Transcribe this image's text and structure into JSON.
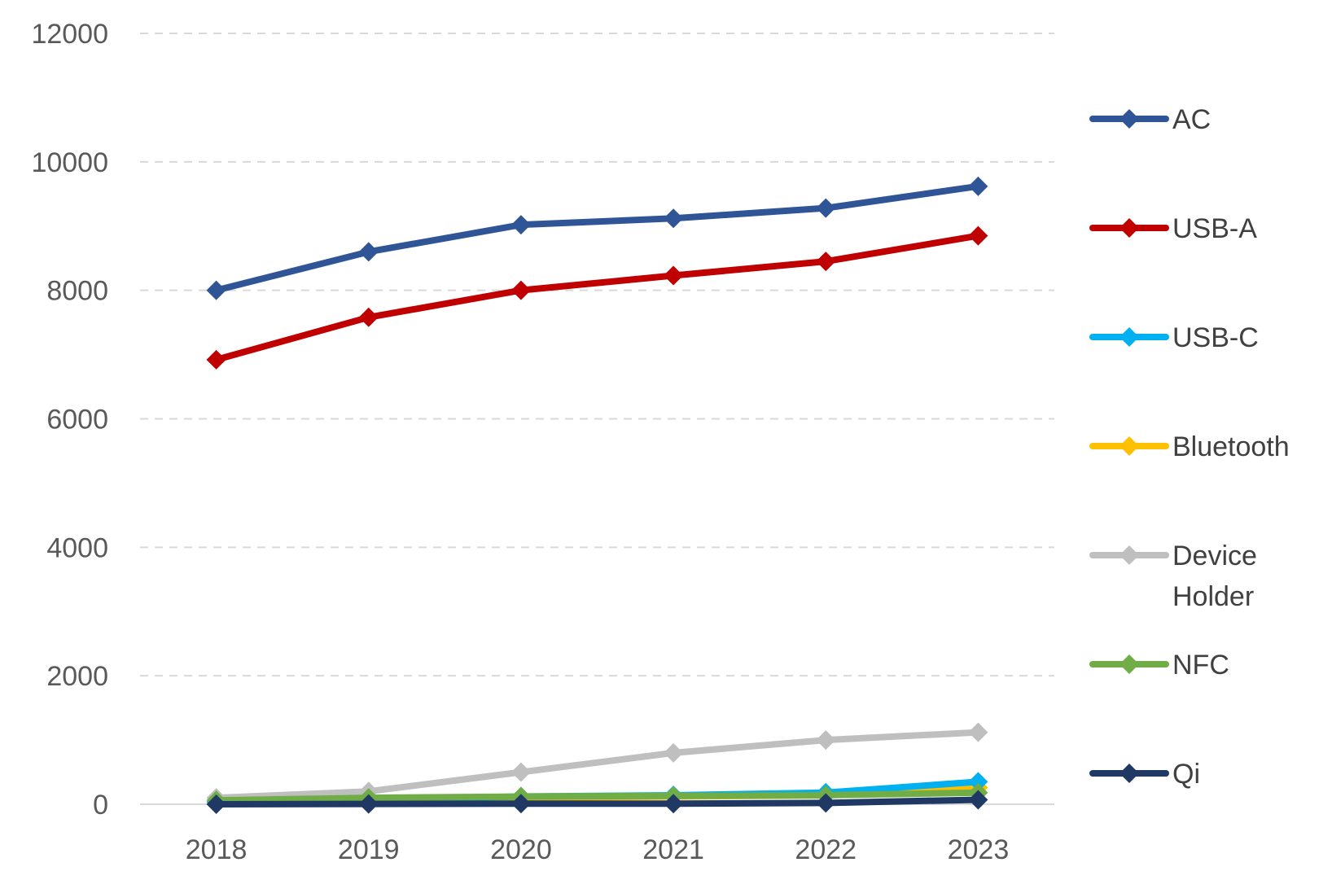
{
  "chart_data": {
    "type": "line",
    "title": "",
    "xlabel": "",
    "ylabel": "",
    "x": [
      "2018",
      "2019",
      "2020",
      "2021",
      "2022",
      "2023"
    ],
    "ylim": [
      0,
      12000
    ],
    "yticks": [
      "0",
      "2000",
      "4000",
      "6000",
      "8000",
      "10000",
      "12000"
    ],
    "grid": true,
    "legend_position": "right",
    "series": [
      {
        "name": "AC",
        "color": "#2f5597",
        "values": [
          8000,
          8600,
          9020,
          9120,
          9280,
          9620
        ]
      },
      {
        "name": "USB-A",
        "color": "#c00000",
        "values": [
          6920,
          7580,
          8000,
          8230,
          8450,
          8850
        ]
      },
      {
        "name": "USB-C",
        "color": "#00b0f0",
        "values": [
          30,
          70,
          120,
          140,
          180,
          350
        ]
      },
      {
        "name": "Bluetooth",
        "color": "#ffc000",
        "values": [
          40,
          80,
          100,
          120,
          140,
          260
        ]
      },
      {
        "name": "Device Holder",
        "color": "#bfbfbf",
        "values": [
          100,
          200,
          500,
          800,
          1000,
          1120
        ]
      },
      {
        "name": "NFC",
        "color": "#70ad47",
        "values": [
          60,
          100,
          120,
          130,
          140,
          180
        ]
      },
      {
        "name": "Qi",
        "color": "#203864",
        "values": [
          0,
          5,
          10,
          10,
          20,
          70
        ]
      }
    ]
  }
}
